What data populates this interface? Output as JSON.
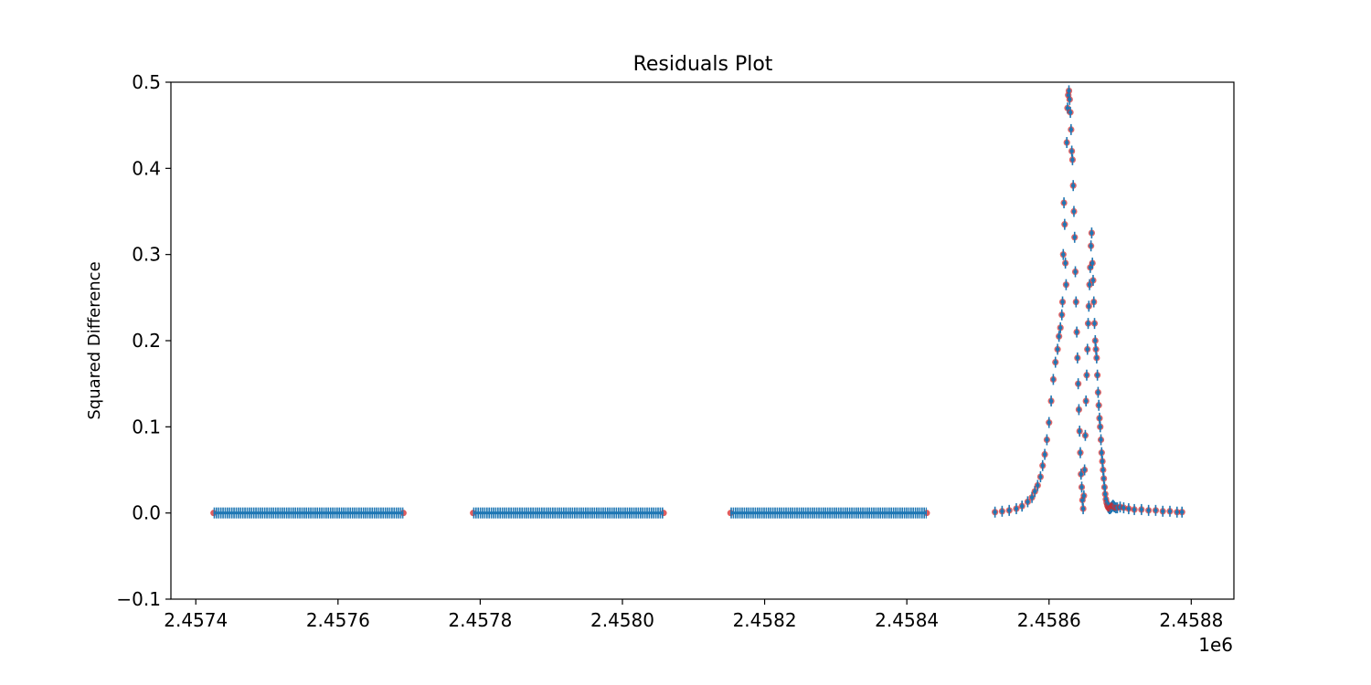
{
  "chart_data": {
    "type": "scatter",
    "title": "Residuals Plot",
    "xlabel": "",
    "ylabel": "Squared Difference",
    "x_offset_label": "1e6",
    "xlim": [
      2457365,
      2458860
    ],
    "ylim": [
      -0.1,
      0.5
    ],
    "xticks": [
      2457400,
      2457600,
      2457800,
      2458000,
      2458200,
      2458400,
      2458600,
      2458800
    ],
    "xtick_labels": [
      "2.4574",
      "2.4576",
      "2.4578",
      "2.4580",
      "2.4582",
      "2.4584",
      "2.4586",
      "2.4588"
    ],
    "yticks": [
      -0.1,
      0.0,
      0.1,
      0.2,
      0.3,
      0.4,
      0.5
    ],
    "ytick_labels": [
      "−0.1",
      "0.0",
      "0.1",
      "0.2",
      "0.3",
      "0.4",
      "0.5"
    ],
    "grid": false,
    "legend": "none",
    "colors": {
      "points": "#1f77b4",
      "point_edges": "#d62728",
      "axes": "#000000",
      "background": "#ffffff"
    },
    "segments": [
      {
        "name": "",
        "x_start": 2457425,
        "x_end": 2457692,
        "y": 0.0
      },
      {
        "name": "",
        "x_start": 2457790,
        "x_end": 2458058,
        "y": 0.0
      },
      {
        "name": "",
        "x_start": 2458152,
        "x_end": 2458428,
        "y": 0.0
      }
    ],
    "series": [
      {
        "name": "",
        "x": [
          2458524,
          2458534,
          2458544,
          2458554,
          2458562,
          2458570,
          2458576,
          2458580,
          2458584,
          2458588,
          2458591,
          2458594,
          2458597,
          2458600,
          2458603,
          2458606,
          2458609,
          2458612,
          2458614,
          2458616,
          2458618,
          2458619,
          2458620,
          2458621,
          2458622,
          2458623,
          2458624,
          2458625,
          2458626,
          2458627,
          2458628,
          2458629,
          2458630,
          2458631,
          2458632,
          2458633,
          2458634,
          2458635,
          2458636,
          2458637,
          2458638,
          2458639,
          2458640,
          2458641,
          2458642,
          2458643,
          2458644,
          2458645,
          2458646,
          2458647,
          2458648,
          2458649,
          2458650,
          2458651,
          2458652,
          2458653,
          2458654,
          2458655,
          2458656,
          2458657,
          2458658,
          2458659,
          2458660,
          2458661,
          2458662,
          2458663,
          2458664,
          2458665,
          2458666,
          2458667,
          2458668,
          2458669,
          2458670,
          2458671,
          2458672,
          2458673,
          2458674,
          2458675,
          2458676,
          2458677,
          2458678,
          2458679,
          2458680,
          2458681,
          2458682,
          2458683,
          2458684,
          2458685,
          2458686,
          2458687,
          2458688,
          2458689,
          2458690,
          2458691,
          2458692,
          2458694,
          2458696,
          2458700,
          2458705,
          2458712,
          2458720,
          2458730,
          2458740,
          2458750,
          2458760,
          2458770,
          2458780,
          2458787
        ],
        "y": [
          0.001,
          0.002,
          0.003,
          0.005,
          0.008,
          0.013,
          0.018,
          0.025,
          0.032,
          0.042,
          0.055,
          0.068,
          0.085,
          0.105,
          0.13,
          0.155,
          0.175,
          0.19,
          0.205,
          0.215,
          0.23,
          0.245,
          0.3,
          0.36,
          0.335,
          0.29,
          0.265,
          0.43,
          0.47,
          0.485,
          0.49,
          0.48,
          0.465,
          0.445,
          0.42,
          0.41,
          0.38,
          0.35,
          0.32,
          0.28,
          0.245,
          0.21,
          0.18,
          0.15,
          0.12,
          0.095,
          0.07,
          0.045,
          0.03,
          0.015,
          0.005,
          0.02,
          0.05,
          0.09,
          0.13,
          0.16,
          0.19,
          0.22,
          0.24,
          0.265,
          0.285,
          0.31,
          0.325,
          0.29,
          0.27,
          0.245,
          0.22,
          0.2,
          0.19,
          0.18,
          0.16,
          0.14,
          0.125,
          0.11,
          0.1,
          0.085,
          0.07,
          0.06,
          0.05,
          0.04,
          0.03,
          0.022,
          0.016,
          0.012,
          0.009,
          0.007,
          0.006,
          0.005,
          0.005,
          0.006,
          0.007,
          0.008,
          0.009,
          0.008,
          0.007,
          0.006,
          0.006,
          0.007,
          0.006,
          0.005,
          0.004,
          0.004,
          0.003,
          0.003,
          0.002,
          0.002,
          0.001,
          0.001
        ]
      }
    ]
  }
}
